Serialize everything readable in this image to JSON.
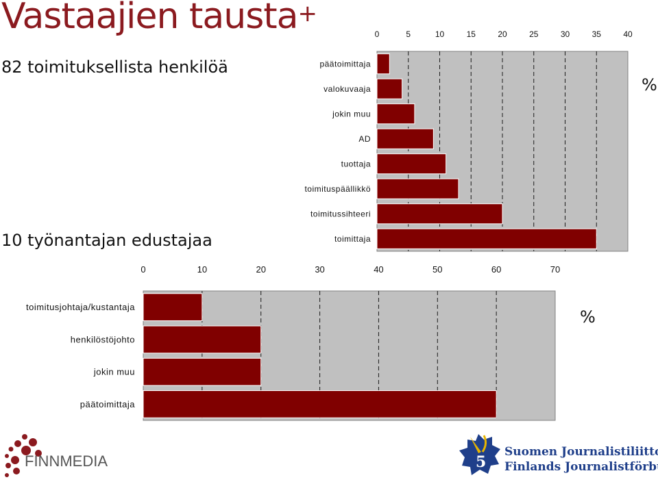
{
  "title": "Vastaajien tausta",
  "subtitle_top": "82 toimituksellista henkilöä",
  "subtitle_bottom": "10 työnantajan edustajaa",
  "percent_label_top": "%",
  "percent_label_bottom": "%",
  "logos": {
    "finnmedia": "FINNMEDIA",
    "sjl_line1": "Suomen Journalistiliitto",
    "sjl_line2": "Finlands Journalistförbund"
  },
  "colors": {
    "accent": "#8b1a1f",
    "bar": "#800000",
    "plot_bg": "#c0c0c0"
  },
  "chart_data": [
    {
      "type": "bar",
      "orientation": "horizontal",
      "categories": [
        "päätoimittaja",
        "valokuvaaja",
        "jokin muu",
        "AD",
        "tuottaja",
        "toimituspäällikkö",
        "toimitussihteeri",
        "toimittaja"
      ],
      "values": [
        2,
        4,
        6,
        9,
        11,
        13,
        20,
        35
      ],
      "xlim": [
        0,
        40
      ],
      "xticks": [
        "0",
        "5",
        "10",
        "15",
        "20",
        "25",
        "30",
        "35",
        "40"
      ],
      "xaxis_position": "top",
      "grid": true,
      "unit": "%"
    },
    {
      "type": "bar",
      "orientation": "horizontal",
      "categories": [
        "toimitusjohtaja/kustantaja",
        "henkilöstöjohto",
        "jokin muu",
        "päätoimittaja"
      ],
      "values": [
        10,
        20,
        20,
        60
      ],
      "xlim": [
        0,
        70
      ],
      "xticks": [
        "0",
        "10",
        "20",
        "30",
        "40",
        "50",
        "60",
        "70"
      ],
      "xaxis_position": "top",
      "grid": true,
      "unit": "%"
    }
  ]
}
